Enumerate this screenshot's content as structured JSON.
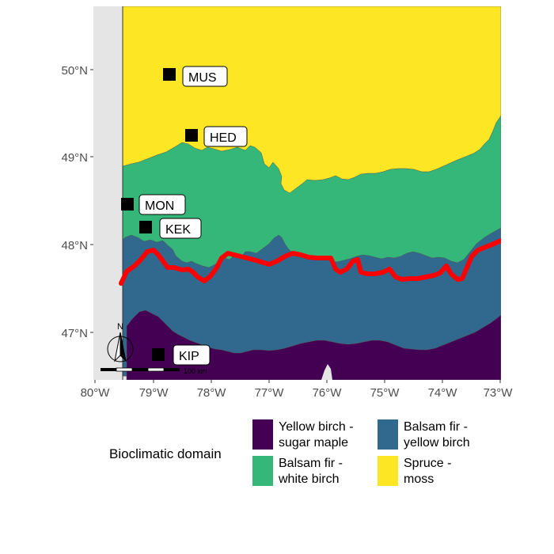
{
  "map": {
    "lat_labels": [
      "50°N",
      "49°N",
      "48°N",
      "47°N"
    ],
    "lon_labels": [
      "80°W",
      "79°W",
      "78°W",
      "77°W",
      "76°W",
      "75°W",
      "74°W",
      "73°W"
    ],
    "sites": [
      {
        "code": "MUS"
      },
      {
        "code": "HED"
      },
      {
        "code": "MON"
      },
      {
        "code": "KEK"
      },
      {
        "code": "KIP"
      }
    ],
    "north_arrow_label": "N",
    "scale_bar_label": "100 km",
    "colors": {
      "yellow_birch_sugar_maple": "#440154",
      "balsam_fir_yellow_birch": "#31688e",
      "balsam_fir_white_birch": "#35b779",
      "spruce_moss": "#fde725",
      "boundary_line": "#ff0000",
      "background": "#e5e5e5"
    }
  },
  "legend": {
    "title": "Bioclimatic domain",
    "items": [
      {
        "label_line1": "Yellow birch -",
        "label_line2": "sugar maple",
        "color": "#440154"
      },
      {
        "label_line1": "Balsam fir -",
        "label_line2": "white birch",
        "color": "#35b779"
      },
      {
        "label_line1": "Balsam fir -",
        "label_line2": "yellow birch",
        "color": "#31688e"
      },
      {
        "label_line1": "Spruce -",
        "label_line2": "moss",
        "color": "#fde725"
      }
    ]
  }
}
